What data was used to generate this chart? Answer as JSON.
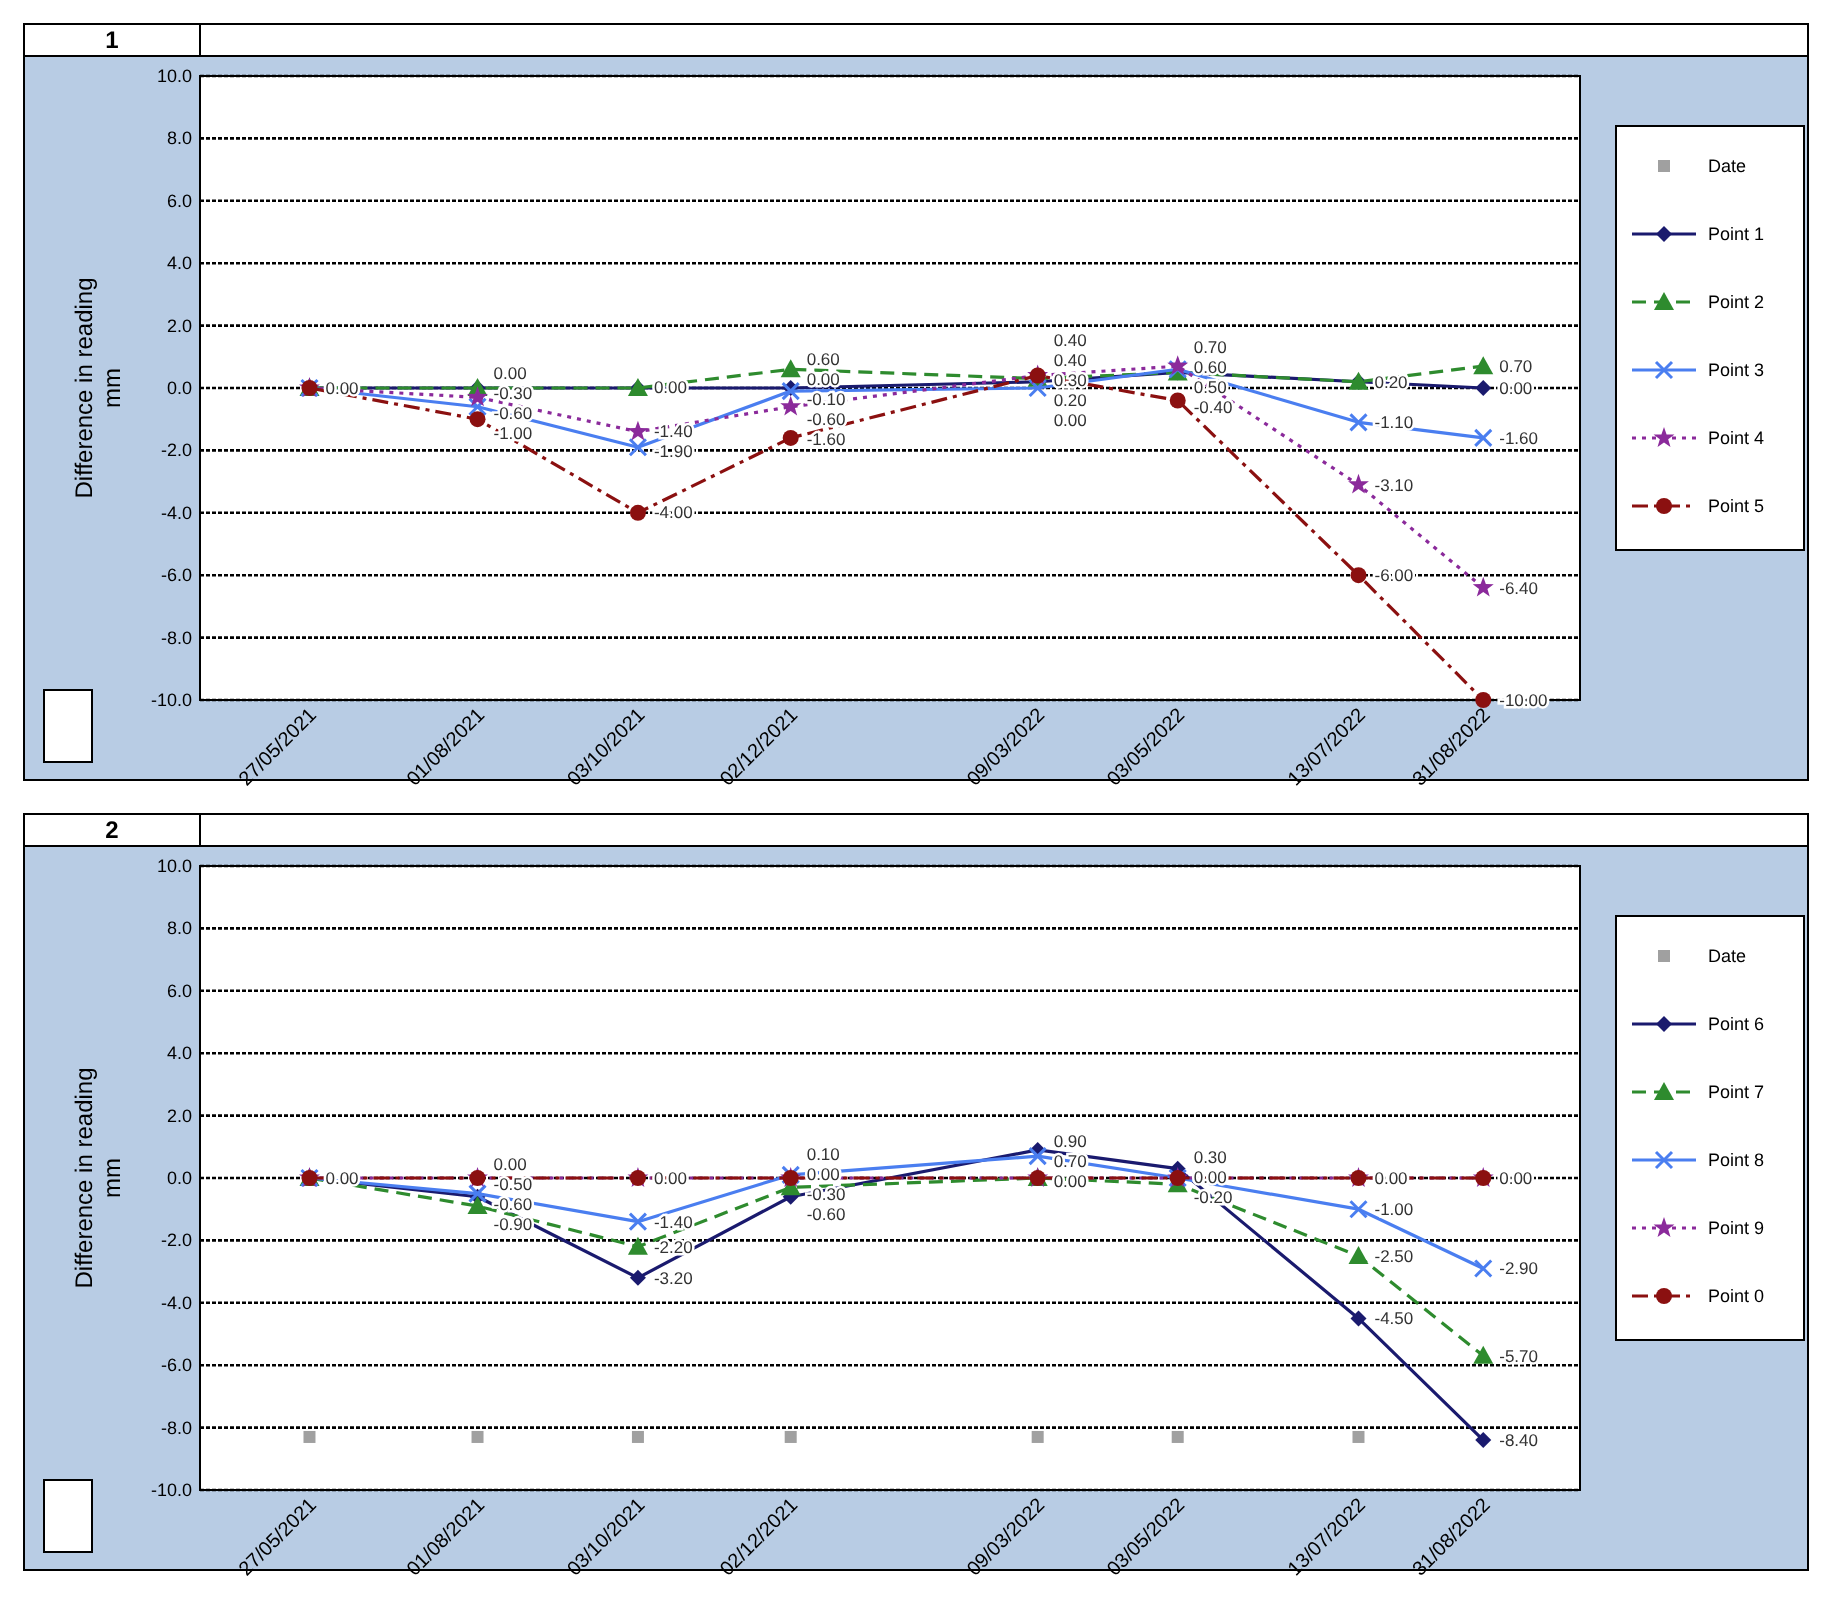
{
  "chart_data": [
    {
      "type": "line",
      "title": "1",
      "ylabel": "Difference in reading mm",
      "x": [
        "2021-05-27",
        "2021-08-01",
        "2021-10-03",
        "2021-12-02",
        "2022-03-09",
        "2022-05-03",
        "2022-07-13",
        "2022-08-31"
      ],
      "xlim": [
        "2021-04-14",
        "2022-10-08"
      ],
      "xticks": [
        {
          "value": "2021-05-27",
          "label": "27/05/2021"
        },
        {
          "value": "2021-08-01",
          "label": "01/08/2021"
        },
        {
          "value": "2021-10-03",
          "label": "03/10/2021"
        },
        {
          "value": "2021-12-02",
          "label": "02/12/2021"
        },
        {
          "value": "2022-03-09",
          "label": "09/03/2022"
        },
        {
          "value": "2022-05-03",
          "label": "03/05/2022"
        },
        {
          "value": "2022-07-13",
          "label": "13/07/2022"
        },
        {
          "value": "2022-08-31",
          "label": "31/08/2022"
        }
      ],
      "ylim": [
        -10,
        10
      ],
      "yticks": [
        {
          "value": -10,
          "label": "-10.0"
        },
        {
          "value": -8,
          "label": "-8.0"
        },
        {
          "value": -6,
          "label": "-6.0"
        },
        {
          "value": -4,
          "label": "-4.0"
        },
        {
          "value": -2,
          "label": "-2.0"
        },
        {
          "value": 0,
          "label": "0.0"
        },
        {
          "value": 2,
          "label": "2.0"
        },
        {
          "value": 4,
          "label": "4.0"
        },
        {
          "value": 6,
          "label": "6.0"
        },
        {
          "value": 8,
          "label": "8.0"
        },
        {
          "value": 10,
          "label": "10.0"
        }
      ],
      "grid": "y",
      "legend": "right",
      "series": [
        {
          "name": "Date",
          "type": "scatter",
          "marker": "square",
          "color": "#a0a0a0",
          "values": [
            null,
            null,
            null,
            null,
            null,
            null,
            null,
            null
          ]
        },
        {
          "name": "Point 1",
          "marker": "diamond",
          "line_style": "solid",
          "color": "#1a1a6e",
          "values": [
            0,
            0,
            0,
            0,
            0.2,
            0.5,
            0.2,
            0
          ],
          "value_labels": [
            null,
            null,
            null,
            "0.00",
            "0.20",
            null,
            null,
            "0.00"
          ]
        },
        {
          "name": "Point 2",
          "marker": "triangle",
          "line_style": "dashed",
          "color": "#2e8b2e",
          "values": [
            0,
            0,
            0,
            0.6,
            0.3,
            0.5,
            0.2,
            0.7
          ],
          "value_labels": [
            null,
            "0.00",
            "0.00",
            "0.60",
            "0.30",
            "0.50",
            "0.20",
            "0.70"
          ]
        },
        {
          "name": "Point 3",
          "marker": "cross",
          "line_style": "solid",
          "color": "#4a7ef0",
          "values": [
            0,
            -0.6,
            -1.9,
            -0.1,
            0,
            0.6,
            -1.1,
            -1.6
          ],
          "value_labels": [
            null,
            "-0.60",
            "-1.90",
            "-0.10",
            "0.00",
            "0.60",
            "-1.10",
            "-1.60"
          ]
        },
        {
          "name": "Point 4",
          "marker": "star",
          "line_style": "dotted",
          "color": "#8b2a9b",
          "values": [
            0,
            -0.3,
            -1.4,
            -0.6,
            0.4,
            0.7,
            -3.1,
            -6.4
          ],
          "value_labels": [
            null,
            "-0.30",
            "-1.40",
            "-0.60",
            "0.40",
            "0.70",
            "-3.10",
            "-6.40"
          ]
        },
        {
          "name": "Point 5",
          "marker": "circle",
          "line_style": "dashdot",
          "color": "#8b1010",
          "values": [
            0,
            -1,
            -4,
            -1.6,
            0.4,
            -0.4,
            -6,
            -10
          ],
          "value_labels": [
            "0.00",
            "-1.00",
            "-4.00",
            "-1.60",
            "0.40",
            "-0.40",
            "-6.00",
            "-10.00"
          ]
        }
      ]
    },
    {
      "type": "line",
      "title": "2",
      "ylabel": "Difference in reading mm",
      "x": [
        "2021-05-27",
        "2021-08-01",
        "2021-10-03",
        "2021-12-02",
        "2022-03-09",
        "2022-05-03",
        "2022-07-13",
        "2022-08-31"
      ],
      "xlim": [
        "2021-04-14",
        "2022-10-08"
      ],
      "xticks": [
        {
          "value": "2021-05-27",
          "label": "27/05/2021"
        },
        {
          "value": "2021-08-01",
          "label": "01/08/2021"
        },
        {
          "value": "2021-10-03",
          "label": "03/10/2021"
        },
        {
          "value": "2021-12-02",
          "label": "02/12/2021"
        },
        {
          "value": "2022-03-09",
          "label": "09/03/2022"
        },
        {
          "value": "2022-05-03",
          "label": "03/05/2022"
        },
        {
          "value": "2022-07-13",
          "label": "13/07/2022"
        },
        {
          "value": "2022-08-31",
          "label": "31/08/2022"
        }
      ],
      "ylim": [
        -10,
        10
      ],
      "yticks": [
        {
          "value": -10,
          "label": "-10.0"
        },
        {
          "value": -8,
          "label": "-8.0"
        },
        {
          "value": -6,
          "label": "-6.0"
        },
        {
          "value": -4,
          "label": "-4.0"
        },
        {
          "value": -2,
          "label": "-2.0"
        },
        {
          "value": 0,
          "label": "0.0"
        },
        {
          "value": 2,
          "label": "2.0"
        },
        {
          "value": 4,
          "label": "4.0"
        },
        {
          "value": 6,
          "label": "6.0"
        },
        {
          "value": 8,
          "label": "8.0"
        },
        {
          "value": 10,
          "label": "10.0"
        }
      ],
      "grid": "y",
      "legend": "right",
      "series": [
        {
          "name": "Date",
          "type": "scatter",
          "marker": "square",
          "color": "#a0a0a0",
          "values": [
            -8.3,
            -8.3,
            -8.3,
            -8.3,
            -8.3,
            -8.3,
            -8.3,
            null
          ]
        },
        {
          "name": "Point 6",
          "marker": "diamond",
          "line_style": "solid",
          "color": "#1a1a6e",
          "values": [
            0,
            -0.6,
            -3.2,
            -0.6,
            0.9,
            0.3,
            -4.5,
            -8.4
          ],
          "value_labels": [
            null,
            "-0.60",
            "-3.20",
            "-0.60",
            "0.90",
            "0.30",
            "-4.50",
            "-8.40"
          ]
        },
        {
          "name": "Point 7",
          "marker": "triangle",
          "line_style": "dashed",
          "color": "#2e8b2e",
          "values": [
            0,
            -0.9,
            -2.2,
            -0.3,
            0,
            -0.2,
            -2.5,
            -5.7
          ],
          "value_labels": [
            null,
            "-0.90",
            "-2.20",
            "-0.30",
            null,
            "-0.20",
            "-2.50",
            "-5.70"
          ]
        },
        {
          "name": "Point 8",
          "marker": "cross",
          "line_style": "solid",
          "color": "#4a7ef0",
          "values": [
            0,
            -0.5,
            -1.4,
            0.1,
            0.7,
            0,
            -1,
            -2.9
          ],
          "value_labels": [
            null,
            "-0.50",
            "-1.40",
            "0.10",
            "0.70",
            null,
            "-1.00",
            "-2.90"
          ]
        },
        {
          "name": "Point 9",
          "marker": "star",
          "line_style": "dotted",
          "color": "#8b2a9b",
          "values": [
            0,
            0,
            0,
            0,
            0,
            0,
            0,
            0
          ],
          "value_labels": [
            null,
            null,
            null,
            null,
            null,
            null,
            null,
            null
          ]
        },
        {
          "name": "Point 0",
          "marker": "circle",
          "line_style": "dashdot",
          "color": "#8b1010",
          "values": [
            0,
            0,
            0,
            0,
            0,
            0,
            0,
            0
          ],
          "value_labels": [
            "0.00",
            "0.00",
            "0.00",
            "0.00",
            "0.00",
            "0.00",
            "0.00",
            "0.00"
          ]
        }
      ]
    }
  ]
}
